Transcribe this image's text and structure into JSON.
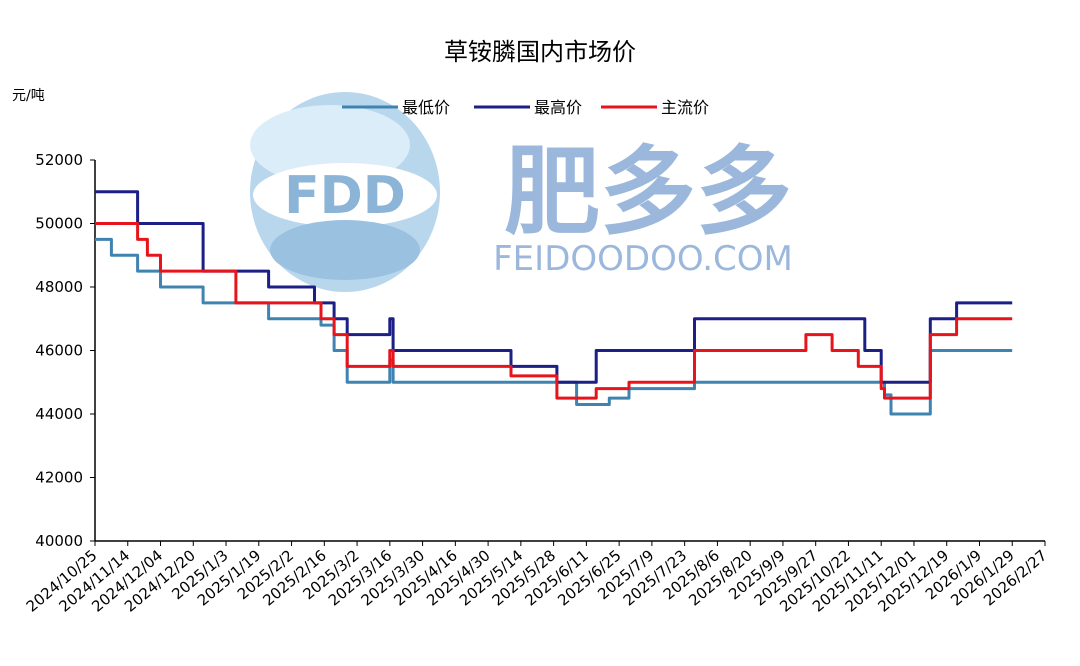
{
  "chart_data": {
    "type": "line",
    "title": "草铵膦国内市场价",
    "ylabel": "元/吨",
    "xlabel": "",
    "ylim": [
      40000,
      52000
    ],
    "yticks": [
      40000,
      42000,
      44000,
      46000,
      48000,
      50000,
      52000
    ],
    "legend_position": "top-center",
    "grid": false,
    "x_tick_labels": [
      "2024/10/25",
      "2024/11/14",
      "2024/12/04",
      "2024/12/20",
      "2025/1/3",
      "2025/1/19",
      "2025/2/2",
      "2025/2/16",
      "2025/3/2",
      "2025/3/16",
      "2025/3/30",
      "2025/4/16",
      "2025/4/30",
      "2025/5/14",
      "2025/5/28",
      "2025/6/11",
      "2025/6/25",
      "2025/7/9",
      "2025/7/23",
      "2025/8/6",
      "2025/8/20",
      "2025/9/9",
      "2025/9/27",
      "2025/10/22",
      "2025/11/11",
      "2025/12/01",
      "2025/12/19",
      "2026/1/9",
      "2026/1/29",
      "2026/2/27"
    ],
    "series": [
      {
        "name": "最低价",
        "color": "#3f84b0",
        "points": [
          [
            0,
            49500
          ],
          [
            0.5,
            49500
          ],
          [
            0.5,
            49000
          ],
          [
            1.3,
            49000
          ],
          [
            1.3,
            48500
          ],
          [
            2.0,
            48500
          ],
          [
            2.0,
            48000
          ],
          [
            3.3,
            48000
          ],
          [
            3.3,
            47500
          ],
          [
            5.3,
            47500
          ],
          [
            5.3,
            47000
          ],
          [
            6.9,
            47000
          ],
          [
            6.9,
            46800
          ],
          [
            7.3,
            46800
          ],
          [
            7.3,
            46000
          ],
          [
            7.7,
            46000
          ],
          [
            7.7,
            45000
          ],
          [
            9.0,
            45000
          ],
          [
            9.0,
            45700
          ],
          [
            9.1,
            45700
          ],
          [
            9.1,
            45000
          ],
          [
            14.7,
            45000
          ],
          [
            14.7,
            44300
          ],
          [
            15.7,
            44300
          ],
          [
            15.7,
            44500
          ],
          [
            16.3,
            44500
          ],
          [
            16.3,
            44800
          ],
          [
            18.3,
            44800
          ],
          [
            18.3,
            45000
          ],
          [
            24.1,
            45000
          ],
          [
            24.1,
            44600
          ],
          [
            24.3,
            44600
          ],
          [
            24.3,
            44000
          ],
          [
            25.5,
            44000
          ],
          [
            25.5,
            46000
          ],
          [
            28.0,
            46000
          ]
        ]
      },
      {
        "name": "最高价",
        "color": "#1b1f86",
        "points": [
          [
            0,
            51000
          ],
          [
            1.3,
            51000
          ],
          [
            1.3,
            50000
          ],
          [
            3.3,
            50000
          ],
          [
            3.3,
            48500
          ],
          [
            5.3,
            48500
          ],
          [
            5.3,
            48000
          ],
          [
            6.7,
            48000
          ],
          [
            6.7,
            47500
          ],
          [
            7.3,
            47500
          ],
          [
            7.3,
            47000
          ],
          [
            7.7,
            47000
          ],
          [
            7.7,
            46500
          ],
          [
            9.0,
            46500
          ],
          [
            9.0,
            47000
          ],
          [
            9.1,
            47000
          ],
          [
            9.1,
            46000
          ],
          [
            12.7,
            46000
          ],
          [
            12.7,
            45500
          ],
          [
            14.1,
            45500
          ],
          [
            14.1,
            45000
          ],
          [
            15.3,
            45000
          ],
          [
            15.3,
            46000
          ],
          [
            18.3,
            46000
          ],
          [
            18.3,
            47000
          ],
          [
            23.5,
            47000
          ],
          [
            23.5,
            46000
          ],
          [
            24.0,
            46000
          ],
          [
            24.0,
            45000
          ],
          [
            25.5,
            45000
          ],
          [
            25.5,
            47000
          ],
          [
            26.3,
            47000
          ],
          [
            26.3,
            47500
          ],
          [
            28.0,
            47500
          ]
        ]
      },
      {
        "name": "主流价",
        "color": "#e8141c",
        "points": [
          [
            0,
            50000
          ],
          [
            1.3,
            50000
          ],
          [
            1.3,
            49500
          ],
          [
            1.6,
            49500
          ],
          [
            1.6,
            49000
          ],
          [
            2.0,
            49000
          ],
          [
            2.0,
            48500
          ],
          [
            4.3,
            48500
          ],
          [
            4.3,
            47500
          ],
          [
            6.9,
            47500
          ],
          [
            6.9,
            47000
          ],
          [
            7.3,
            47000
          ],
          [
            7.3,
            46500
          ],
          [
            7.7,
            46500
          ],
          [
            7.7,
            45500
          ],
          [
            9.0,
            45500
          ],
          [
            9.0,
            46000
          ],
          [
            9.1,
            46000
          ],
          [
            9.1,
            45500
          ],
          [
            12.7,
            45500
          ],
          [
            12.7,
            45200
          ],
          [
            14.1,
            45200
          ],
          [
            14.1,
            44500
          ],
          [
            15.3,
            44500
          ],
          [
            15.3,
            44800
          ],
          [
            16.3,
            44800
          ],
          [
            16.3,
            45000
          ],
          [
            18.3,
            45000
          ],
          [
            18.3,
            46000
          ],
          [
            21.7,
            46000
          ],
          [
            21.7,
            46500
          ],
          [
            22.5,
            46500
          ],
          [
            22.5,
            46000
          ],
          [
            23.3,
            46000
          ],
          [
            23.3,
            45500
          ],
          [
            24.0,
            45500
          ],
          [
            24.0,
            44800
          ],
          [
            24.1,
            44800
          ],
          [
            24.1,
            44500
          ],
          [
            25.5,
            44500
          ],
          [
            25.5,
            46500
          ],
          [
            26.3,
            46500
          ],
          [
            26.3,
            47000
          ],
          [
            28.0,
            47000
          ]
        ]
      }
    ]
  },
  "watermark": {
    "logo_text": "FDD",
    "brand_cn": "肥多多",
    "brand_url": "FEIDOODOO.COM",
    "color": "#4a90c8"
  }
}
